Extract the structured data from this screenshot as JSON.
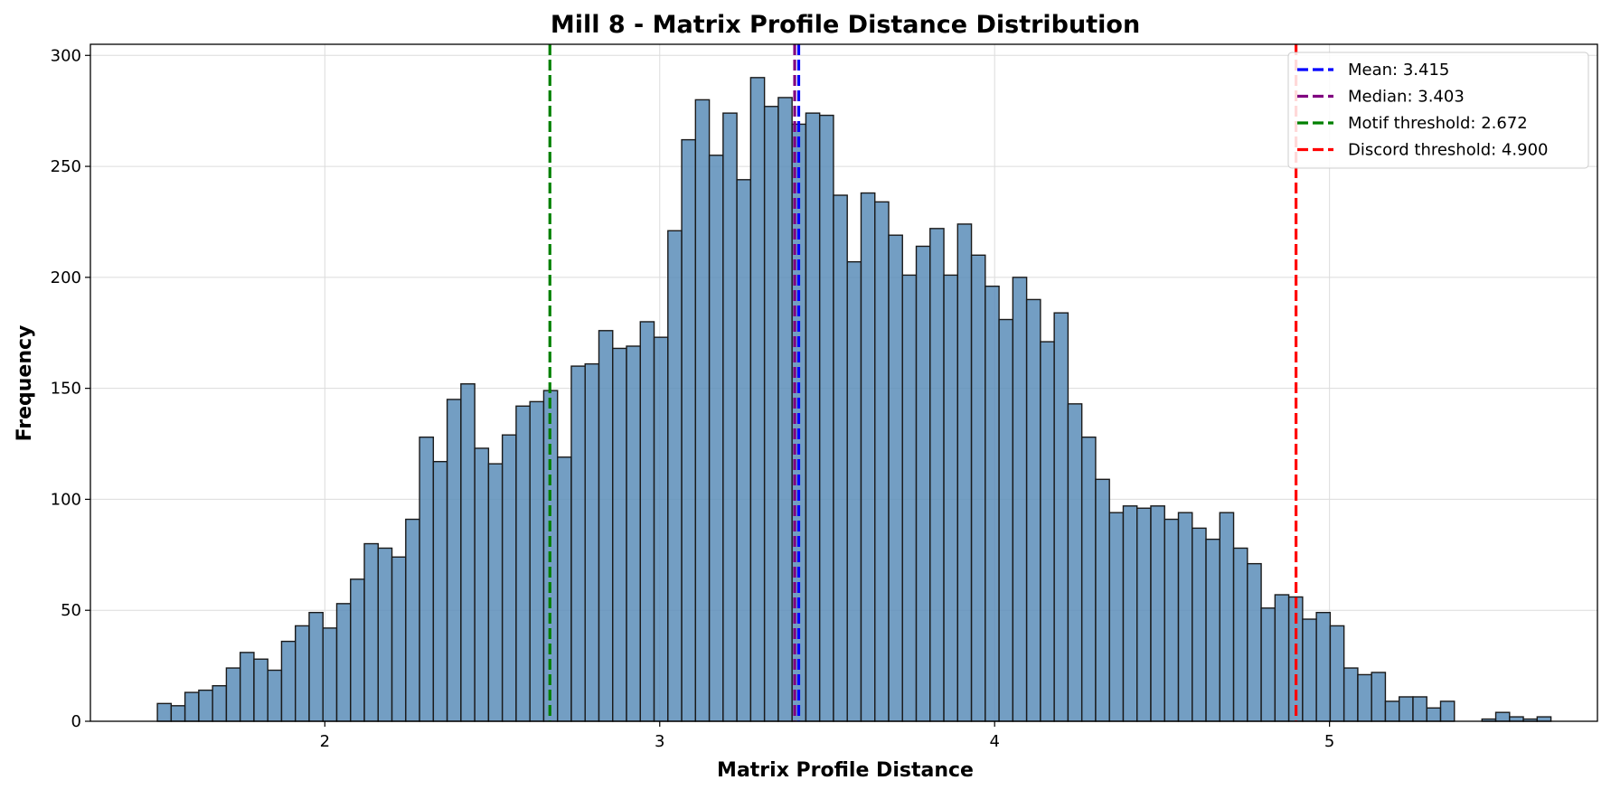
{
  "chart_data": {
    "type": "bar",
    "title": "Mill 8 - Matrix Profile Distance Distribution",
    "xlabel": "Matrix Profile Distance",
    "ylabel": "Frequency",
    "xlim": [
      1.3,
      5.8
    ],
    "ylim": [
      0,
      305
    ],
    "grid": true,
    "legend_position": "top-right",
    "bar_color": "#5b8db8",
    "bar_edge_color": "#1a1a1a",
    "bin_start": 1.5,
    "bin_width": 0.0412,
    "values": [
      8,
      7,
      13,
      14,
      16,
      24,
      31,
      28,
      23,
      36,
      43,
      49,
      42,
      53,
      64,
      80,
      78,
      74,
      91,
      128,
      117,
      145,
      152,
      123,
      116,
      129,
      142,
      144,
      149,
      119,
      160,
      161,
      176,
      168,
      169,
      180,
      173,
      221,
      262,
      280,
      255,
      274,
      244,
      290,
      277,
      281,
      269,
      274,
      273,
      237,
      207,
      238,
      234,
      219,
      201,
      214,
      222,
      201,
      224,
      210,
      196,
      181,
      200,
      190,
      171,
      184,
      143,
      128,
      109,
      94,
      97,
      96,
      97,
      91,
      94,
      87,
      82,
      94,
      78,
      71,
      51,
      57,
      56,
      46,
      49,
      43,
      24,
      21,
      22,
      9,
      11,
      11,
      6,
      9,
      0,
      0,
      1,
      4,
      2,
      1,
      2
    ],
    "x_ticks": [
      2,
      3,
      4,
      5
    ],
    "y_ticks": [
      0,
      50,
      100,
      150,
      200,
      250,
      300
    ],
    "reference_lines": [
      {
        "name": "Mean: 3.415",
        "x": 3.415,
        "color": "#0000ff"
      },
      {
        "name": "Median: 3.403",
        "x": 3.403,
        "color": "#800080"
      },
      {
        "name": "Motif threshold: 2.672",
        "x": 2.672,
        "color": "#008000"
      },
      {
        "name": "Discord threshold: 4.900",
        "x": 4.9,
        "color": "#ff0000"
      }
    ]
  }
}
